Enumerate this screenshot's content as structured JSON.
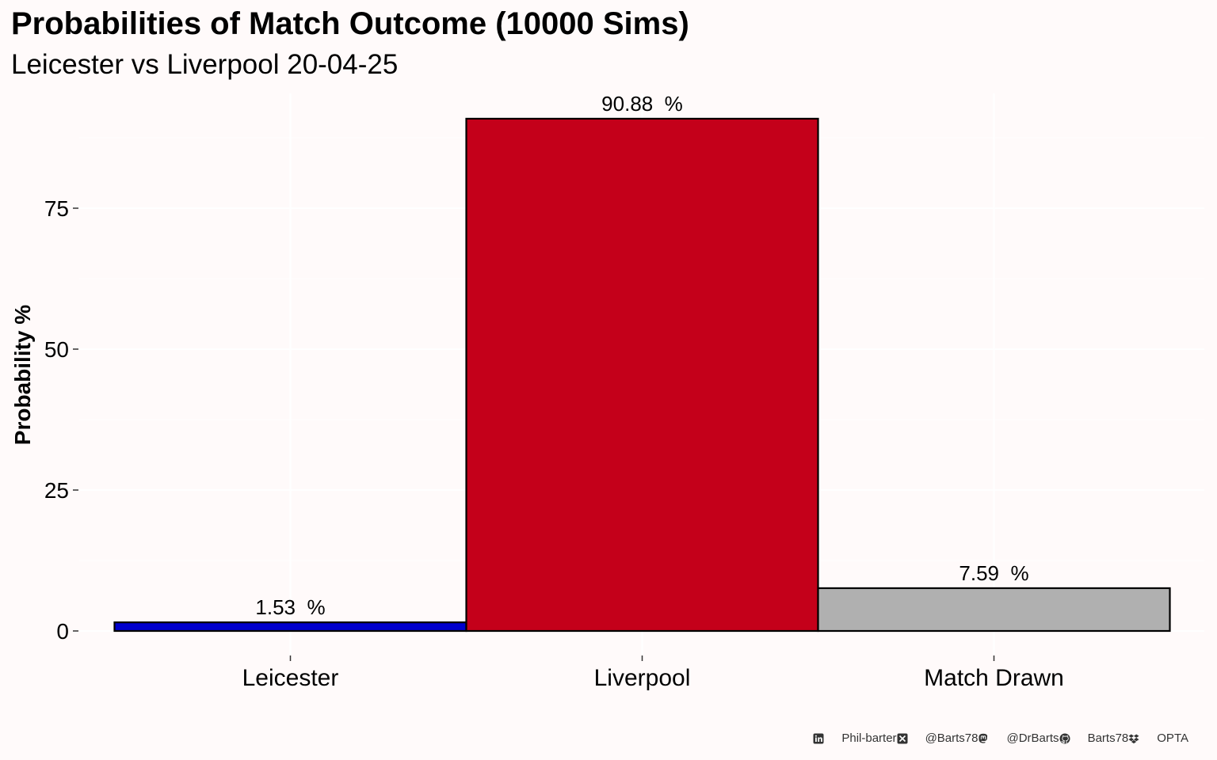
{
  "chart_data": {
    "type": "bar",
    "title": "Probabilities of Match Outcome (10000 Sims)",
    "subtitle": "Leicester vs Liverpool 20-04-25",
    "xlabel": "",
    "ylabel": "Probability %",
    "categories": [
      "Leicester",
      "Liverpool",
      "Match Drawn"
    ],
    "values": [
      1.53,
      90.88,
      7.59
    ],
    "data_labels": [
      "1.53  %",
      "90.88  %",
      "7.59  %"
    ],
    "colors": [
      "#0000cd",
      "#c4001a",
      "#b0b0b0"
    ],
    "yticks": [
      0,
      25,
      50,
      75
    ],
    "ytick_labels": [
      "0",
      "25",
      "50",
      "75"
    ],
    "ylim": [
      0,
      95
    ],
    "grid": true,
    "legend": "none"
  },
  "footer": {
    "items": [
      {
        "icon": "linkedin-icon",
        "label": "Phil-barter"
      },
      {
        "icon": "x-twitter-icon",
        "label": "@Barts78"
      },
      {
        "icon": "mastodon-icon",
        "label": "@DrBarts"
      },
      {
        "icon": "github-icon",
        "label": "Barts78"
      },
      {
        "icon": "dropbox-icon",
        "label": "OPTA"
      }
    ]
  },
  "colors": {
    "background": "#fffafa",
    "bar_outline": "#000000"
  }
}
